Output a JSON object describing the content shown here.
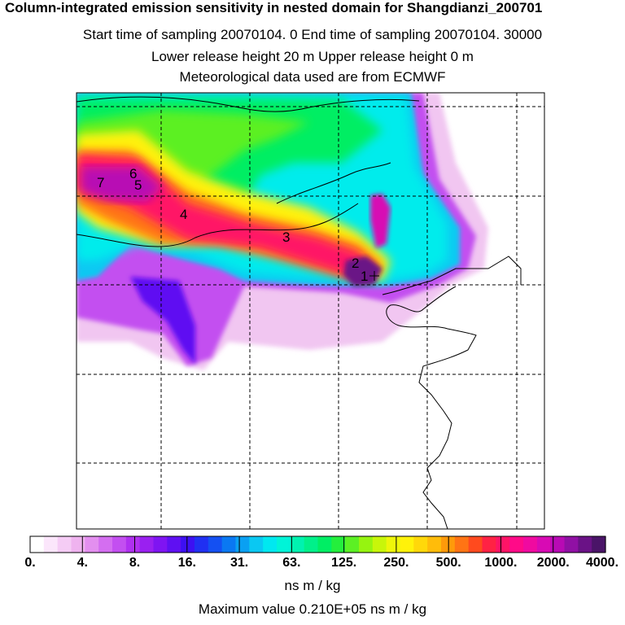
{
  "header": {
    "title": "Column-integrated emission sensitivity in nested domain for Shangdianzi_200701",
    "sampling": "Start time of sampling 20070104.     0     End time of sampling 20070104. 30000",
    "release": "Lower release height   20 m          Upper release height    0 m",
    "met": "Meteorological data used are from ECMWF"
  },
  "map": {
    "markers": [
      {
        "label": "7"
      },
      {
        "label": "6"
      },
      {
        "label": "5"
      },
      {
        "label": "4"
      },
      {
        "label": "3"
      },
      {
        "label": "2"
      },
      {
        "label": "1"
      }
    ]
  },
  "colorbar": {
    "tick_labels": [
      "0.",
      "4.",
      "8.",
      "16.",
      "31.",
      "63.",
      "125.",
      "250.",
      "500.",
      "1000.",
      "2000.",
      "4000."
    ],
    "colors": [
      "#ffffff",
      "#fbe6fb",
      "#f5ccf5",
      "#efb3ef",
      "#e38fef",
      "#d46ef0",
      "#c34ff0",
      "#b030f0",
      "#9a20f0",
      "#7f14f2",
      "#5f10f2",
      "#3d10f2",
      "#2030f2",
      "#1450f2",
      "#0a78f2",
      "#0aa0f2",
      "#0ac8f2",
      "#00e8f0",
      "#00f4d8",
      "#00f2b0",
      "#00f08a",
      "#00ee64",
      "#24ef3c",
      "#5cf024",
      "#96f410",
      "#c8f60a",
      "#eef60a",
      "#fff20a",
      "#ffd80a",
      "#ffbc0a",
      "#ff9a0a",
      "#ff7414",
      "#ff4a1e",
      "#ff2244",
      "#ff1466",
      "#ff0a88",
      "#f00aa0",
      "#d80ab4",
      "#b80ab4",
      "#9010a4",
      "#6a1286",
      "#4a1468"
    ],
    "units": "ns m / kg",
    "max_value": "Maximum value  0.210E+05 ns m / kg"
  }
}
